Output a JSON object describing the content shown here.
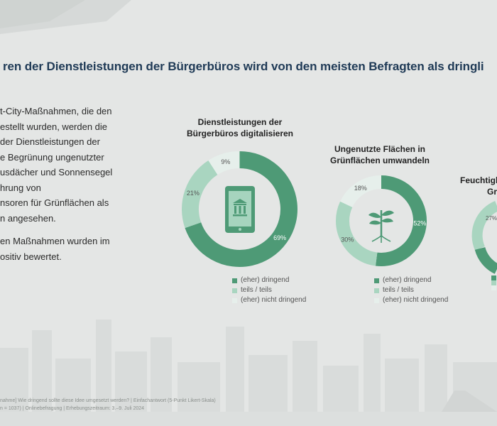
{
  "slide": {
    "title": "ren der Dienstleistungen der Bürgerbüros wird von den meisten Befragten als dringli",
    "body_lines": [
      "t-City-Maßnahmen, die den",
      "estellt wurden, werden die",
      "der Dienstleistungen der",
      "e Begrünung ungenutzter",
      "usdächer und Sonnensegel",
      "hrung von",
      "nsoren für Grünflächen als",
      "n angesehen."
    ],
    "body_lines_2": [
      "en Maßnahmen wurden im",
      "ositiv bewertet."
    ],
    "footer_lines": [
      "nahme] Wie dringend sollte diese Idee umgesetzt werden? | Einfachantwort (5-Punkt Likert-Skala)",
      "n = 1037) | Onlinebefragung | Erhebungszeitraum: 3.–9. Juli 2024"
    ]
  },
  "legend_labels": [
    "(eher) dringend",
    "teils / teils",
    "(eher) nicht dringend"
  ],
  "colors": {
    "dark": "#4e9a76",
    "mid": "#a9d5c0",
    "light": "#e6efeb",
    "icon_dark": "#4e9a76",
    "icon_light": "#a6d4be"
  },
  "icons": [
    "tablet-bank-icon",
    "plant-icon"
  ],
  "chart_data": [
    {
      "type": "pie",
      "title_lines": [
        "Dienstleistungen der",
        "Bürgerbüros digitalisieren"
      ],
      "categories": [
        "(eher) dringend",
        "teils / teils",
        "(eher) nicht dringend"
      ],
      "values": [
        69,
        21,
        9
      ],
      "labels": [
        "69%",
        "21%",
        "9%"
      ]
    },
    {
      "type": "pie",
      "title_lines": [
        "Ungenutzte Flächen in",
        "Grünflächen umwandeln"
      ],
      "categories": [
        "(eher) dringend",
        "teils / teils",
        "(eher) nicht dringend"
      ],
      "values": [
        52,
        30,
        18
      ],
      "labels": [
        "52%",
        "30%",
        "18%"
      ]
    },
    {
      "type": "pie",
      "title_lines": [
        "Feuchtigk",
        "Gr"
      ],
      "categories": [
        "(eher) dringend",
        "teils / teils",
        "(eher) nicht dringend"
      ],
      "values": [
        null,
        27,
        null
      ],
      "labels": [
        "",
        "27%",
        ""
      ]
    }
  ]
}
